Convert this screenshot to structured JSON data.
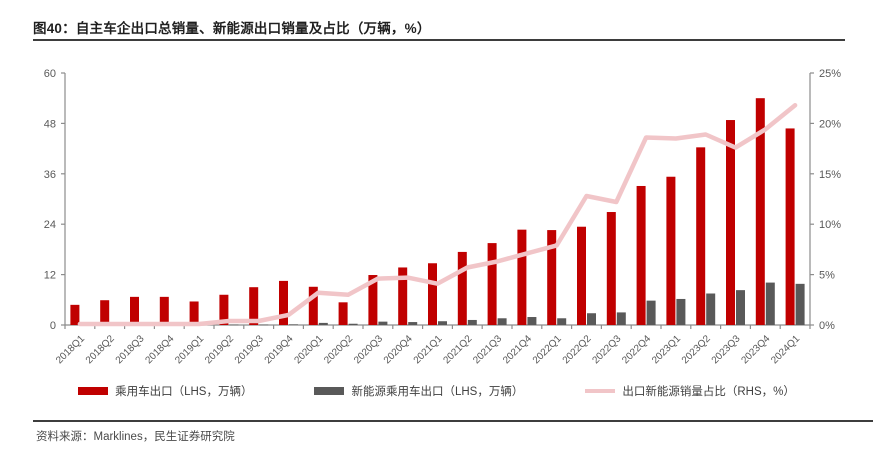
{
  "title": "图40：自主车企出口总销量、新能源出口销量及占比（万辆，%）",
  "source": "资料来源：Marklines，民生证券研究院",
  "colors": {
    "bar_primary": "#C00000",
    "bar_secondary": "#595959",
    "line_series": "#F1C5C8",
    "axis": "#8c8c8c",
    "tick_label": "#595959"
  },
  "legend": {
    "items": [
      {
        "label": "乘用车出口（LHS，万辆）",
        "swatch": "bar_primary",
        "kind": "bar"
      },
      {
        "label": "新能源乘用车出口（LHS，万辆）",
        "swatch": "bar_secondary",
        "kind": "bar"
      },
      {
        "label": "出口新能源销量占比（RHS，%）",
        "swatch": "line_series",
        "kind": "line"
      }
    ]
  },
  "chart_data": {
    "type": "bar",
    "subtype": "grouped-bars-with-line-combo",
    "title": "图40：自主车企出口总销量、新能源出口销量及占比（万辆，%）",
    "categories": [
      "2018Q1",
      "2018Q2",
      "2018Q3",
      "2018Q4",
      "2019Q1",
      "2019Q2",
      "2019Q3",
      "2019Q4",
      "2020Q1",
      "2020Q2",
      "2020Q3",
      "2020Q4",
      "2021Q1",
      "2021Q2",
      "2021Q3",
      "2021Q4",
      "2022Q1",
      "2022Q2",
      "2022Q3",
      "2022Q4",
      "2023Q1",
      "2023Q2",
      "2023Q3",
      "2023Q4",
      "2024Q1"
    ],
    "series": [
      {
        "name": "乘用车出口（LHS，万辆）",
        "type": "bar",
        "axis": "left",
        "color": "#C00000",
        "values": [
          4.8,
          5.9,
          6.7,
          6.7,
          5.6,
          7.2,
          9.0,
          10.5,
          9.1,
          5.4,
          11.9,
          13.7,
          14.7,
          17.4,
          19.5,
          22.7,
          22.6,
          23.4,
          26.9,
          33.1,
          35.3,
          42.3,
          48.8,
          54.0,
          46.8
        ]
      },
      {
        "name": "新能源乘用车出口（LHS，万辆）",
        "type": "bar",
        "axis": "left",
        "color": "#595959",
        "values": [
          0.05,
          0.05,
          0.05,
          0.05,
          0.05,
          0.1,
          0.1,
          0.15,
          0.5,
          0.3,
          0.8,
          0.7,
          0.9,
          1.2,
          1.6,
          1.9,
          1.6,
          2.8,
          3.0,
          5.8,
          6.2,
          7.5,
          8.3,
          10.1,
          9.8
        ]
      },
      {
        "name": "出口新能源销量占比（RHS，%）",
        "type": "line",
        "axis": "right",
        "color": "#F1C5C8",
        "values": [
          0.1,
          0.1,
          0.1,
          0.1,
          0.1,
          0.4,
          0.4,
          1.0,
          3.2,
          3.0,
          4.6,
          4.7,
          4.1,
          5.7,
          6.3,
          7.1,
          7.9,
          12.8,
          12.2,
          18.6,
          18.5,
          18.9,
          17.6,
          19.4,
          21.8
        ]
      }
    ],
    "left_axis": {
      "min": 0,
      "max": 60,
      "ticks": [
        0,
        12,
        24,
        36,
        48,
        60
      ],
      "label": "万辆"
    },
    "right_axis": {
      "min": 0,
      "max": 25,
      "ticks": [
        0,
        5,
        10,
        15,
        20,
        25
      ],
      "tick_suffix": "%"
    },
    "grid": false,
    "legend_position": "bottom",
    "xlabel": "",
    "ylabel": ""
  }
}
